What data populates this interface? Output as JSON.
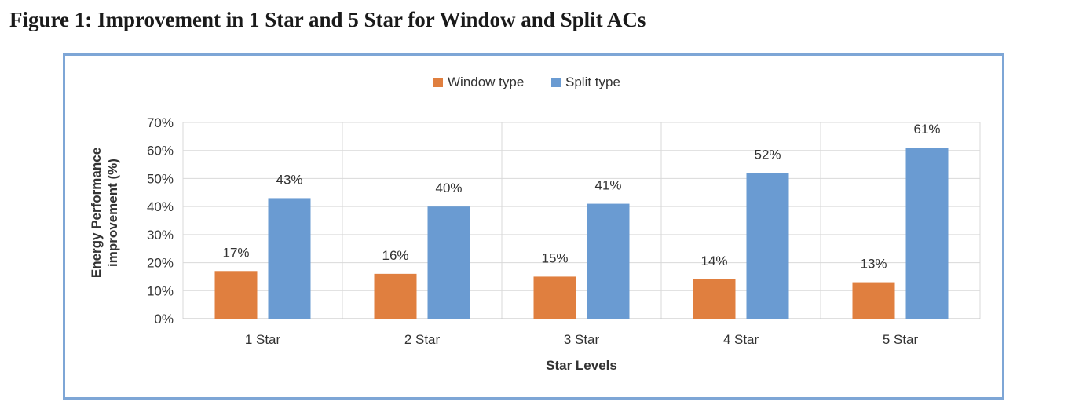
{
  "figure": {
    "title": "Figure 1: Improvement in 1 Star and 5 Star for Window and Split ACs"
  },
  "chart_data": {
    "type": "bar",
    "title": "",
    "categories": [
      "1 Star",
      "2 Star",
      "3 Star",
      "4 Star",
      "5 Star"
    ],
    "series": [
      {
        "name": "Window type",
        "color": "#e07f3f",
        "values": [
          17,
          16,
          15,
          14,
          13
        ],
        "labels": [
          "17%",
          "16%",
          "15%",
          "14%",
          "13%"
        ]
      },
      {
        "name": "Split type",
        "color": "#6a9bd2",
        "values": [
          43,
          40,
          41,
          52,
          61
        ],
        "labels": [
          "43%",
          "40%",
          "41%",
          "52%",
          "61%"
        ]
      }
    ],
    "xlabel": "Star Levels",
    "ylabel": [
      "Energy Performance",
      "improvement (%)"
    ],
    "ylim": [
      0,
      70
    ],
    "yticks": [
      0,
      10,
      20,
      30,
      40,
      50,
      60,
      70
    ],
    "ytick_labels": [
      "0%",
      "10%",
      "20%",
      "30%",
      "40%",
      "50%",
      "60%",
      "70%"
    ],
    "grid": true,
    "legend_position": "top-center"
  }
}
